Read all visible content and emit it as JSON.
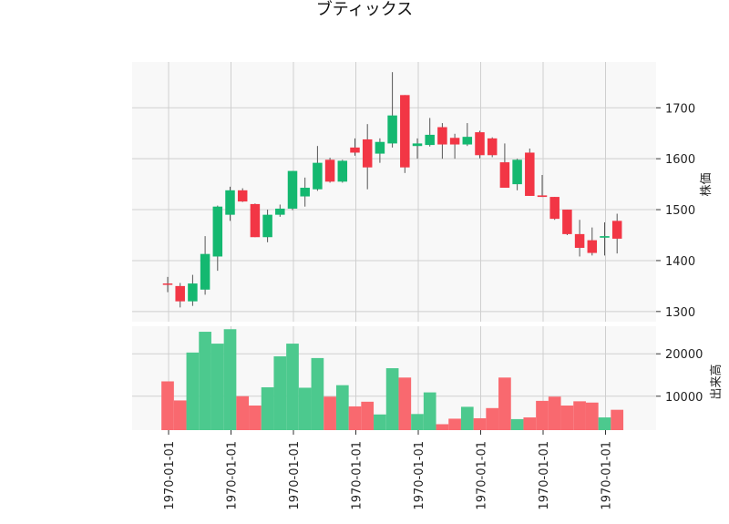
{
  "chart_data": {
    "type": "candlestick",
    "title": "ブティックス",
    "ylabel": "株価",
    "volume_ylabel": "出来高",
    "price_ylim": [
      1280,
      1790
    ],
    "volume_ylim": [
      2000,
      26500
    ],
    "price_ticks": [
      1300,
      1400,
      1500,
      1600,
      1700
    ],
    "price_tick_labels": [
      "1300",
      "1400",
      "1500",
      "1600",
      "1700"
    ],
    "volume_ticks": [
      10000,
      20000
    ],
    "volume_tick_labels": [
      "10000",
      "20000"
    ],
    "x_tick_labels": [
      "1970-01-01",
      "1970-01-01",
      "1970-01-01",
      "1970-01-01",
      "1970-01-01",
      "1970-01-01",
      "1970-01-01",
      "1970-01-01"
    ],
    "x_tick_indices": [
      0.5,
      5.5,
      10.5,
      15.5,
      20.5,
      25.5,
      30.5,
      35.5
    ],
    "grid": true,
    "up_color": "#14b870",
    "down_color": "#f23645",
    "vol_up_color": "#4cc98e",
    "vol_down_color": "#f9696f",
    "background": "#f8f8f8",
    "candles": [
      {
        "open": 1355,
        "high": 1368,
        "low": 1338,
        "close": 1354
      },
      {
        "open": 1350,
        "high": 1356,
        "low": 1308,
        "close": 1320
      },
      {
        "open": 1320,
        "high": 1372,
        "low": 1311,
        "close": 1355
      },
      {
        "open": 1343,
        "high": 1448,
        "low": 1333,
        "close": 1413
      },
      {
        "open": 1408,
        "high": 1508,
        "low": 1380,
        "close": 1506
      },
      {
        "open": 1490,
        "high": 1545,
        "low": 1478,
        "close": 1538
      },
      {
        "open": 1538,
        "high": 1542,
        "low": 1515,
        "close": 1516
      },
      {
        "open": 1511,
        "high": 1512,
        "low": 1446,
        "close": 1446
      },
      {
        "open": 1446,
        "high": 1500,
        "low": 1436,
        "close": 1490
      },
      {
        "open": 1490,
        "high": 1510,
        "low": 1486,
        "close": 1502
      },
      {
        "open": 1502,
        "high": 1576,
        "low": 1499,
        "close": 1576
      },
      {
        "open": 1526,
        "high": 1563,
        "low": 1506,
        "close": 1543
      },
      {
        "open": 1540,
        "high": 1625,
        "low": 1537,
        "close": 1592
      },
      {
        "open": 1598,
        "high": 1602,
        "low": 1553,
        "close": 1555
      },
      {
        "open": 1555,
        "high": 1598,
        "low": 1553,
        "close": 1596
      },
      {
        "open": 1622,
        "high": 1640,
        "low": 1606,
        "close": 1612
      },
      {
        "open": 1638,
        "high": 1668,
        "low": 1540,
        "close": 1583
      },
      {
        "open": 1610,
        "high": 1640,
        "low": 1592,
        "close": 1633
      },
      {
        "open": 1630,
        "high": 1770,
        "low": 1622,
        "close": 1685
      },
      {
        "open": 1725,
        "high": 1725,
        "low": 1572,
        "close": 1583
      },
      {
        "open": 1625,
        "high": 1640,
        "low": 1600,
        "close": 1630
      },
      {
        "open": 1627,
        "high": 1680,
        "low": 1624,
        "close": 1647
      },
      {
        "open": 1662,
        "high": 1670,
        "low": 1600,
        "close": 1628
      },
      {
        "open": 1641,
        "high": 1649,
        "low": 1600,
        "close": 1628
      },
      {
        "open": 1628,
        "high": 1670,
        "low": 1625,
        "close": 1643
      },
      {
        "open": 1652,
        "high": 1655,
        "low": 1601,
        "close": 1607
      },
      {
        "open": 1640,
        "high": 1642,
        "low": 1603,
        "close": 1607
      },
      {
        "open": 1593,
        "high": 1630,
        "low": 1543,
        "close": 1543
      },
      {
        "open": 1550,
        "high": 1600,
        "low": 1538,
        "close": 1598
      },
      {
        "open": 1612,
        "high": 1620,
        "low": 1527,
        "close": 1527
      },
      {
        "open": 1528,
        "high": 1568,
        "low": 1525,
        "close": 1525
      },
      {
        "open": 1525,
        "high": 1525,
        "low": 1480,
        "close": 1482
      },
      {
        "open": 1500,
        "high": 1500,
        "low": 1450,
        "close": 1452
      },
      {
        "open": 1452,
        "high": 1480,
        "low": 1408,
        "close": 1425
      },
      {
        "open": 1440,
        "high": 1465,
        "low": 1410,
        "close": 1415
      },
      {
        "open": 1445,
        "high": 1475,
        "low": 1410,
        "close": 1448
      },
      {
        "open": 1478,
        "high": 1492,
        "low": 1414,
        "close": 1443
      }
    ],
    "volume": [
      13500,
      9000,
      20300,
      25200,
      22400,
      25800,
      10000,
      7800,
      12100,
      19400,
      22400,
      12000,
      19000,
      9900,
      12600,
      7600,
      8700,
      5700,
      16600,
      14400,
      5800,
      10900,
      3400,
      4700,
      7500,
      4800,
      7200,
      14400,
      4600,
      5000,
      8900,
      9900,
      7800,
      8800,
      8500,
      5000,
      6800
    ]
  }
}
